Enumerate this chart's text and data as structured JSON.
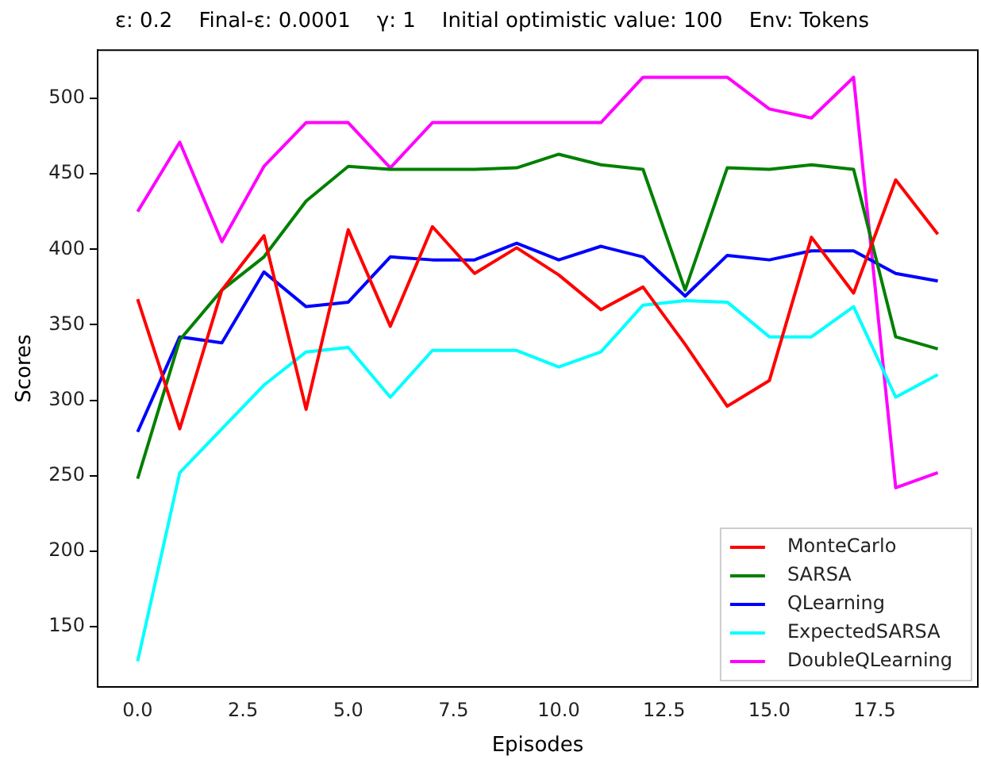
{
  "chart_data": {
    "type": "line",
    "title": "ε: 0.2    Final-ε: 0.0001    γ: 1    Initial optimistic value: 100    Env: Tokens",
    "xlabel": "Episodes",
    "ylabel": "Scores",
    "x": [
      0,
      1,
      2,
      3,
      4,
      5,
      6,
      7,
      8,
      9,
      10,
      11,
      12,
      13,
      14,
      15,
      16,
      17,
      18,
      19
    ],
    "xlim": [
      -0.95,
      19.95
    ],
    "xticks": [
      {
        "value": 0,
        "label": "0.0"
      },
      {
        "value": 2.5,
        "label": "2.5"
      },
      {
        "value": 5,
        "label": "5.0"
      },
      {
        "value": 7.5,
        "label": "7.5"
      },
      {
        "value": 10,
        "label": "10.0"
      },
      {
        "value": 12.5,
        "label": "12.5"
      },
      {
        "value": 15,
        "label": "15.0"
      },
      {
        "value": 17.5,
        "label": "17.5"
      }
    ],
    "ylim": [
      110,
      532
    ],
    "yticks": [
      150,
      200,
      250,
      300,
      350,
      400,
      450,
      500
    ],
    "grid": false,
    "legend": "bottom right",
    "marker": "none",
    "line_style": "solid",
    "series": [
      {
        "name": "MonteCarlo",
        "color": "#ff0000",
        "values": [
          367,
          281,
          373,
          409,
          294,
          413,
          349,
          415,
          384,
          401,
          383,
          360,
          375,
          337,
          296,
          313,
          408,
          371,
          446,
          410
        ]
      },
      {
        "name": "SARSA",
        "color": "#008000",
        "values": [
          248,
          340,
          373,
          395,
          432,
          455,
          453,
          453,
          453,
          454,
          463,
          456,
          453,
          373,
          454,
          453,
          456,
          453,
          342,
          334
        ]
      },
      {
        "name": "QLearning",
        "color": "#0000ff",
        "values": [
          279,
          342,
          338,
          385,
          362,
          365,
          395,
          393,
          393,
          404,
          393,
          402,
          395,
          369,
          396,
          393,
          399,
          399,
          384,
          379
        ]
      },
      {
        "name": "ExpectedSARSA",
        "color": "#00ffff",
        "values": [
          127,
          252,
          281,
          310,
          332,
          335,
          302,
          333,
          333,
          333,
          322,
          332,
          363,
          366,
          365,
          342,
          342,
          362,
          302,
          317
        ]
      },
      {
        "name": "DoubleQLearning",
        "color": "#ff00ff",
        "values": [
          425,
          471,
          405,
          455,
          484,
          484,
          454,
          484,
          484,
          484,
          484,
          484,
          514,
          514,
          514,
          493,
          487,
          514,
          242,
          252
        ]
      }
    ]
  }
}
